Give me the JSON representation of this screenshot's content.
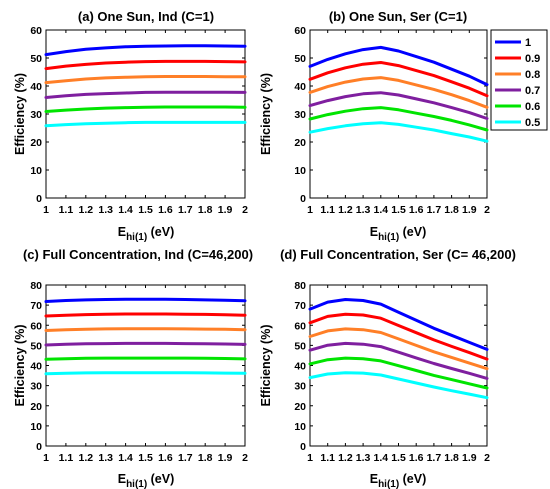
{
  "chart_data": [
    {
      "type": "line",
      "title": "(a) One Sun, Ind (C=1)",
      "ylabel": "Efficiency (%)",
      "xlabel": "E_hi(1) (eV)",
      "xlim": [
        1,
        2
      ],
      "ylim": [
        0,
        60
      ],
      "yticks": [
        0,
        10,
        20,
        30,
        40,
        50,
        60
      ],
      "x": [
        1,
        1.1,
        1.2,
        1.3,
        1.4,
        1.5,
        1.6,
        1.7,
        1.8,
        1.9,
        2
      ],
      "series": [
        {
          "name": "1",
          "values": [
            51.2,
            52.3,
            53.1,
            53.6,
            54.0,
            54.2,
            54.3,
            54.4,
            54.4,
            54.3,
            54.2
          ]
        },
        {
          "name": "0.9",
          "values": [
            46.2,
            47.1,
            47.7,
            48.2,
            48.5,
            48.7,
            48.8,
            48.8,
            48.8,
            48.7,
            48.6
          ]
        },
        {
          "name": "0.8",
          "values": [
            41.2,
            41.9,
            42.5,
            42.9,
            43.1,
            43.3,
            43.4,
            43.4,
            43.4,
            43.3,
            43.3
          ]
        },
        {
          "name": "0.7",
          "values": [
            35.9,
            36.5,
            37.0,
            37.3,
            37.5,
            37.7,
            37.8,
            37.8,
            37.8,
            37.8,
            37.7
          ]
        },
        {
          "name": "0.6",
          "values": [
            30.9,
            31.4,
            31.8,
            32.1,
            32.3,
            32.4,
            32.5,
            32.5,
            32.5,
            32.5,
            32.4
          ]
        },
        {
          "name": "0.5",
          "values": [
            25.8,
            26.2,
            26.5,
            26.7,
            26.9,
            27.0,
            27.0,
            27.0,
            27.0,
            27.0,
            27.0
          ]
        }
      ]
    },
    {
      "type": "line",
      "title": "(b) One Sun, Ser (C=1)",
      "ylabel": "Efficiency (%)",
      "xlabel": "E_hi(1) (eV)",
      "xlim": [
        1,
        2
      ],
      "ylim": [
        0,
        60
      ],
      "yticks": [
        0,
        10,
        20,
        30,
        40,
        50,
        60
      ],
      "x": [
        1,
        1.1,
        1.2,
        1.3,
        1.4,
        1.5,
        1.6,
        1.7,
        1.8,
        1.9,
        2
      ],
      "series": [
        {
          "name": "1",
          "values": [
            47.0,
            49.5,
            51.5,
            53.0,
            53.8,
            52.5,
            50.5,
            48.5,
            46.0,
            43.5,
            40.5
          ]
        },
        {
          "name": "0.9",
          "values": [
            42.4,
            44.7,
            46.5,
            47.8,
            48.4,
            47.3,
            45.5,
            43.7,
            41.5,
            39.2,
            36.5
          ]
        },
        {
          "name": "0.8",
          "values": [
            37.7,
            39.8,
            41.4,
            42.5,
            43.0,
            42.0,
            40.4,
            38.8,
            36.9,
            34.8,
            32.4
          ]
        },
        {
          "name": "0.7",
          "values": [
            33.0,
            34.8,
            36.2,
            37.2,
            37.6,
            36.8,
            35.4,
            34.0,
            32.3,
            30.5,
            28.4
          ]
        },
        {
          "name": "0.6",
          "values": [
            28.2,
            29.8,
            31.0,
            31.9,
            32.3,
            31.5,
            30.3,
            29.1,
            27.7,
            26.1,
            24.3
          ]
        },
        {
          "name": "0.5",
          "values": [
            23.5,
            24.8,
            25.8,
            26.5,
            26.9,
            26.3,
            25.3,
            24.3,
            23.0,
            21.8,
            20.3
          ]
        }
      ]
    },
    {
      "type": "line",
      "title": "(c) Full Concentration, Ind (C=46,200)",
      "ylabel": "Efficiency (%)",
      "xlabel": "E_hi(1) (eV)",
      "xlim": [
        1,
        2
      ],
      "ylim": [
        0,
        80
      ],
      "yticks": [
        0,
        10,
        20,
        30,
        40,
        50,
        60,
        70,
        80
      ],
      "x": [
        1,
        1.1,
        1.2,
        1.3,
        1.4,
        1.5,
        1.6,
        1.7,
        1.8,
        1.9,
        2
      ],
      "series": [
        {
          "name": "1",
          "values": [
            71.8,
            72.3,
            72.6,
            72.8,
            72.9,
            72.9,
            72.9,
            72.8,
            72.6,
            72.4,
            72.2
          ]
        },
        {
          "name": "0.9",
          "values": [
            64.6,
            65.0,
            65.3,
            65.5,
            65.6,
            65.6,
            65.6,
            65.5,
            65.4,
            65.2,
            65.0
          ]
        },
        {
          "name": "0.8",
          "values": [
            57.4,
            57.8,
            58.0,
            58.2,
            58.3,
            58.3,
            58.3,
            58.2,
            58.1,
            58.0,
            57.8
          ]
        },
        {
          "name": "0.7",
          "values": [
            50.2,
            50.6,
            50.8,
            50.9,
            51.0,
            51.0,
            51.0,
            50.9,
            50.8,
            50.7,
            50.5
          ]
        },
        {
          "name": "0.6",
          "values": [
            43.1,
            43.4,
            43.6,
            43.7,
            43.7,
            43.7,
            43.7,
            43.7,
            43.6,
            43.5,
            43.3
          ]
        },
        {
          "name": "0.5",
          "values": [
            35.9,
            36.1,
            36.3,
            36.4,
            36.4,
            36.4,
            36.4,
            36.4,
            36.3,
            36.2,
            36.1
          ]
        }
      ]
    },
    {
      "type": "line",
      "title": "(d) Full Concentration, Ser (C= 46,200)",
      "ylabel": "Efficiency (%)",
      "xlabel": "E_hi(1) (eV)",
      "xlim": [
        1,
        2
      ],
      "ylim": [
        0,
        80
      ],
      "yticks": [
        0,
        10,
        20,
        30,
        40,
        50,
        60,
        70,
        80
      ],
      "x": [
        1,
        1.1,
        1.2,
        1.3,
        1.4,
        1.5,
        1.6,
        1.7,
        1.8,
        1.9,
        2
      ],
      "series": [
        {
          "name": "1",
          "values": [
            68.0,
            71.5,
            72.8,
            72.3,
            70.5,
            66.5,
            62.5,
            58.5,
            55.0,
            51.5,
            48.0
          ]
        },
        {
          "name": "0.9",
          "values": [
            61.2,
            64.4,
            65.5,
            65.1,
            63.5,
            59.9,
            56.3,
            52.7,
            49.5,
            46.4,
            43.2
          ]
        },
        {
          "name": "0.8",
          "values": [
            54.4,
            57.2,
            58.2,
            57.8,
            56.4,
            53.2,
            50.0,
            46.8,
            44.0,
            41.2,
            38.4
          ]
        },
        {
          "name": "0.7",
          "values": [
            47.6,
            50.1,
            51.0,
            50.6,
            49.4,
            46.6,
            43.8,
            41.0,
            38.5,
            36.1,
            33.6
          ]
        },
        {
          "name": "0.6",
          "values": [
            40.8,
            42.9,
            43.7,
            43.4,
            42.3,
            39.9,
            37.5,
            35.1,
            33.0,
            30.9,
            28.8
          ]
        },
        {
          "name": "0.5",
          "values": [
            34.0,
            35.8,
            36.4,
            36.2,
            35.3,
            33.3,
            31.3,
            29.3,
            27.5,
            25.8,
            24.0
          ]
        }
      ]
    }
  ],
  "legend": {
    "placement": "right of panel (b)",
    "entries": [
      {
        "label": "1",
        "color": "#0000ff"
      },
      {
        "label": "0.9",
        "color": "#ff0000"
      },
      {
        "label": "0.8",
        "color": "#ff7f27"
      },
      {
        "label": "0.7",
        "color": "#7f1f9f"
      },
      {
        "label": "0.6",
        "color": "#00e400"
      },
      {
        "label": "0.5",
        "color": "#00ffff"
      }
    ]
  },
  "xlabel_parts": {
    "main": "E",
    "sub": "hi(1)",
    "unit": " (eV)"
  },
  "xtick_labels": [
    "1",
    "1.1",
    "1.2",
    "1.3",
    "1.4",
    "1.5",
    "1.6",
    "1.7",
    "1.8",
    "1.9",
    "2"
  ]
}
